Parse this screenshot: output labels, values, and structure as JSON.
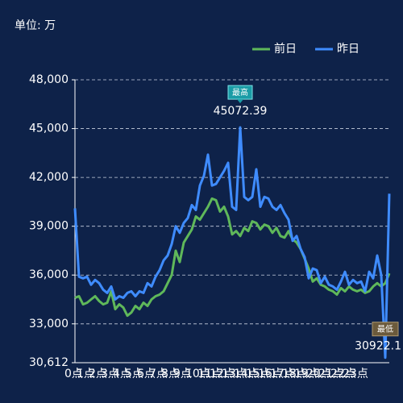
{
  "chart_data": {
    "type": "line",
    "title": "单位: 万",
    "categories": [
      "0点",
      null,
      null,
      "1点",
      null,
      null,
      "2点",
      null,
      null,
      "3点",
      null,
      null,
      "4点",
      null,
      null,
      "5点",
      null,
      null,
      "6点",
      null,
      null,
      "7点",
      null,
      null,
      "8点",
      null,
      null,
      "9点",
      null,
      null,
      "10点",
      null,
      null,
      "11点",
      null,
      null,
      "12点",
      null,
      null,
      "13点",
      null,
      null,
      "14点",
      null,
      null,
      "15点",
      null,
      null,
      "16点",
      null,
      null,
      "17点",
      null,
      null,
      "18点",
      null,
      null,
      "19点",
      null,
      null,
      "20点",
      null,
      null,
      "21点",
      null,
      null,
      "22点",
      null,
      null,
      "23点",
      null,
      null,
      null,
      null,
      null,
      null,
      null,
      null,
      null
    ],
    "series": [
      {
        "name": "前日",
        "color": "#5fb85a",
        "values": [
          34600,
          34700,
          34200,
          34300,
          34500,
          34700,
          34400,
          34200,
          34300,
          35000,
          33900,
          34200,
          34000,
          33500,
          33700,
          34100,
          33900,
          34300,
          34100,
          34500,
          34700,
          34800,
          35000,
          35500,
          36000,
          37500,
          36800,
          38000,
          38400,
          38800,
          39600,
          39400,
          39800,
          40200,
          40700,
          40600,
          39900,
          40200,
          39600,
          38500,
          38700,
          38400,
          38900,
          38700,
          39300,
          39200,
          38800,
          39100,
          39000,
          38600,
          38900,
          38400,
          38300,
          38700,
          38200,
          38000,
          37600,
          37000,
          36400,
          35600,
          35800,
          35400,
          35300,
          35100,
          35000,
          34800,
          35200,
          35000,
          35300,
          35100,
          35000,
          35100,
          34900,
          35000,
          35300,
          35500,
          35300,
          35500,
          36100
        ]
      },
      {
        "name": "昨日",
        "color": "#3f8cff",
        "values": [
          40100,
          35900,
          35800,
          35900,
          35400,
          35700,
          35500,
          35100,
          34900,
          35300,
          34500,
          34700,
          34600,
          34900,
          35000,
          34700,
          35000,
          34900,
          35500,
          35300,
          35900,
          36300,
          36900,
          37200,
          37900,
          39000,
          38600,
          39200,
          39500,
          40300,
          40000,
          41500,
          42100,
          43400,
          41500,
          41600,
          42000,
          42400,
          42900,
          40200,
          40000,
          45072.39,
          40800,
          40600,
          40800,
          42500,
          40200,
          40800,
          40700,
          40200,
          40000,
          40300,
          39800,
          39400,
          38100,
          38400,
          37600,
          37100,
          35800,
          36400,
          36300,
          35500,
          35900,
          35400,
          35300,
          35100,
          35600,
          36200,
          35400,
          35700,
          35500,
          35600,
          35000,
          36200,
          35800,
          37200,
          36000,
          30922.1,
          41000
        ]
      }
    ],
    "ylim": [
      30612,
      48000
    ],
    "yticks": [
      {
        "value": 30612,
        "label": "30,612"
      },
      {
        "value": 33000,
        "label": "33,000"
      },
      {
        "value": 36000,
        "label": "36,000"
      },
      {
        "value": 39000,
        "label": "39,000"
      },
      {
        "value": 42000,
        "label": "42,000"
      },
      {
        "value": 45000,
        "label": "45,000"
      },
      {
        "value": 48000,
        "label": "48,000"
      }
    ],
    "grid": true,
    "legend": "top-right",
    "max_label": "最高",
    "min_label": "最低"
  }
}
